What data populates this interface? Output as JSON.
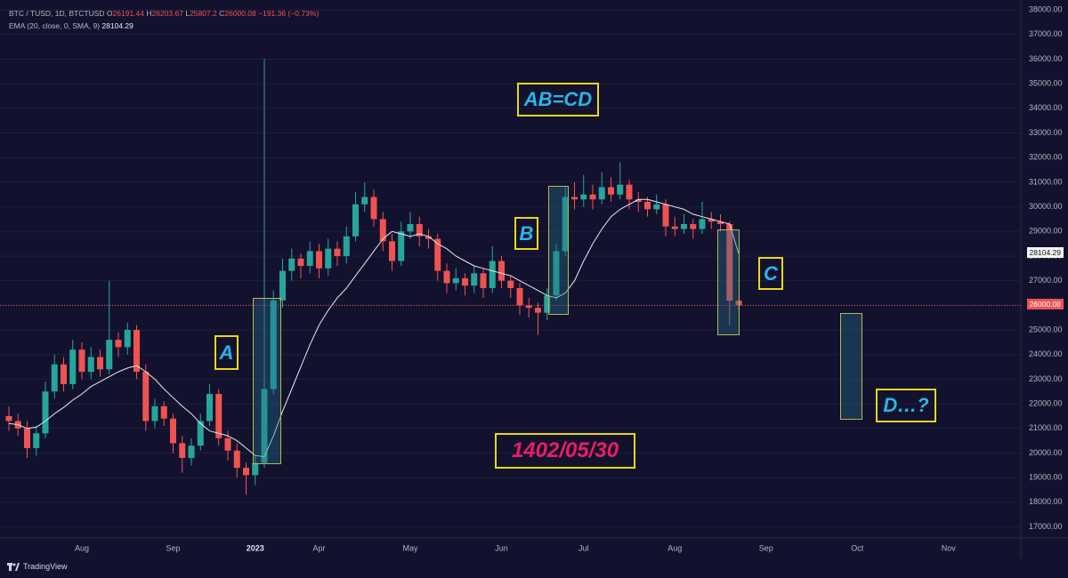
{
  "chart_data": {
    "type": "candlestick",
    "symbol": "BTC / TUSD, 1D, BTCTUSD",
    "ohlc_labels": [
      "O",
      "H",
      "L",
      "C"
    ],
    "change": "−191.36 (−0.73%)",
    "up_color": "#26a69a",
    "down_color": "#ef5350",
    "grid": true,
    "categories": [
      null,
      null,
      null,
      null,
      null,
      null,
      null,
      null,
      "Aug",
      null,
      null,
      null,
      null,
      null,
      null,
      null,
      null,
      null,
      "Sep",
      null,
      null,
      null,
      null,
      null,
      null,
      null,
      null,
      "2023",
      null,
      null,
      null,
      null,
      null,
      null,
      "Apr",
      null,
      null,
      null,
      null,
      null,
      null,
      null,
      null,
      null,
      "May",
      null,
      null,
      null,
      null,
      null,
      null,
      null,
      null,
      null,
      "Jun",
      null,
      null,
      null,
      null,
      null,
      null,
      null,
      null,
      "Jul",
      null,
      null,
      null,
      null,
      null,
      null,
      null,
      null,
      null,
      "Aug",
      null,
      null,
      null,
      null,
      null,
      null,
      null,
      null,
      null,
      "Sep",
      null,
      null,
      null,
      null,
      null,
      null,
      null,
      null,
      null,
      "Oct",
      null,
      null,
      null,
      null,
      null,
      null,
      null,
      null,
      null,
      "Nov",
      null,
      null,
      null,
      null,
      null,
      null
    ],
    "open": [
      21500,
      21300,
      21000,
      20200,
      20800,
      22500,
      23600,
      22800,
      24200,
      23300,
      23900,
      23400,
      24600,
      24300,
      25000,
      23300,
      21300,
      21900,
      21400,
      20400,
      19800,
      20300,
      21300,
      22400,
      20600,
      20100,
      19400,
      19100,
      19600,
      22600,
      26200,
      27400,
      27900,
      27600,
      28200,
      27500,
      28300,
      28000,
      28800,
      30100,
      30400,
      29500,
      28600,
      27800,
      29000,
      29300,
      28800,
      28700,
      27400,
      26900,
      27100,
      26800,
      27300,
      26700,
      27800,
      27000,
      26700,
      26000,
      25900,
      25700,
      26400,
      28200,
      30400,
      30300,
      30500,
      30300,
      30800,
      30500,
      30900,
      30300,
      30200,
      29900,
      30100,
      29200,
      29100,
      29300,
      29100,
      29500,
      29400,
      29300,
      26191.44,
      null,
      null,
      null,
      null,
      null,
      null,
      null,
      null,
      null,
      null,
      null,
      null,
      null,
      null,
      null,
      null,
      null,
      null,
      null,
      null,
      null,
      null,
      null,
      null,
      null,
      null,
      null,
      null,
      null
    ],
    "high": [
      21900,
      21600,
      21300,
      21100,
      22900,
      24000,
      23900,
      24600,
      24500,
      24300,
      24200,
      27000,
      24900,
      25300,
      25200,
      23600,
      22200,
      22100,
      21600,
      20700,
      20600,
      21600,
      22800,
      22600,
      20900,
      20400,
      19600,
      19900,
      36000,
      26600,
      27900,
      28300,
      28100,
      28600,
      28500,
      28700,
      28600,
      29200,
      30600,
      31000,
      30700,
      29800,
      28900,
      29400,
      29800,
      29600,
      29100,
      28900,
      27700,
      27500,
      27300,
      27600,
      27500,
      28400,
      28000,
      27200,
      26900,
      26300,
      26100,
      26700,
      28500,
      30800,
      31000,
      31300,
      30900,
      31400,
      31200,
      31800,
      31100,
      30600,
      30400,
      30500,
      30300,
      29600,
      29700,
      29500,
      30200,
      29800,
      29700,
      29400,
      26203.67,
      null,
      null,
      null,
      null,
      null,
      null,
      null,
      null,
      null,
      null,
      null,
      null,
      null,
      null,
      null,
      null,
      null,
      null,
      null,
      null,
      null,
      null,
      null,
      null,
      null,
      null,
      null,
      null,
      null
    ],
    "low": [
      20900,
      20700,
      19800,
      19900,
      20600,
      22200,
      22500,
      22600,
      23000,
      23000,
      23100,
      23200,
      23900,
      24000,
      23000,
      20900,
      21000,
      21100,
      20000,
      19200,
      19500,
      20100,
      21100,
      20300,
      19700,
      19000,
      18300,
      18700,
      19400,
      22400,
      25900,
      27000,
      27100,
      27300,
      27100,
      27200,
      27600,
      27700,
      28600,
      29800,
      29200,
      28200,
      27400,
      27600,
      28700,
      28400,
      28300,
      27000,
      26500,
      26600,
      26400,
      26500,
      26300,
      26500,
      26700,
      26300,
      25600,
      25500,
      24800,
      25400,
      26200,
      28000,
      29900,
      30000,
      29900,
      30100,
      30200,
      30300,
      29900,
      29800,
      29600,
      29700,
      28800,
      28800,
      28900,
      28700,
      28900,
      29100,
      29000,
      25200,
      25807.2,
      null,
      null,
      null,
      null,
      null,
      null,
      null,
      null,
      null,
      null,
      null,
      null,
      null,
      null,
      null,
      null,
      null,
      null,
      null,
      null,
      null,
      null,
      null,
      null,
      null,
      null,
      null,
      null,
      null
    ],
    "close": [
      21300,
      21000,
      20200,
      20800,
      22500,
      23600,
      22800,
      24200,
      23300,
      23900,
      23400,
      24600,
      24300,
      25000,
      23300,
      21300,
      21900,
      21400,
      20400,
      19800,
      20300,
      21300,
      22400,
      20600,
      20100,
      19400,
      19100,
      19600,
      22600,
      26200,
      27400,
      27900,
      27600,
      28200,
      27500,
      28300,
      28000,
      28800,
      30100,
      30400,
      29500,
      28600,
      27800,
      29000,
      29300,
      28800,
      28700,
      27400,
      26900,
      27100,
      26800,
      27300,
      26700,
      27800,
      27000,
      26700,
      26000,
      25900,
      25700,
      26400,
      28200,
      30400,
      30300,
      30500,
      30300,
      30800,
      30500,
      30900,
      30300,
      30200,
      29900,
      30100,
      29200,
      29100,
      29300,
      29100,
      29500,
      29400,
      29300,
      26191.44,
      26000.08,
      null,
      null,
      null,
      null,
      null,
      null,
      null,
      null,
      null,
      null,
      null,
      null,
      null,
      null,
      null,
      null,
      null,
      null,
      null,
      null,
      null,
      null,
      null,
      null,
      null,
      null,
      null,
      null,
      null
    ],
    "overlay": {
      "name": "EMA (20, close, 0, SMA, 9)",
      "color": "#e8e8f0",
      "values": [
        21200,
        21150,
        21000,
        21050,
        21300,
        21600,
        21850,
        22150,
        22400,
        22700,
        22900,
        23100,
        23300,
        23450,
        23550,
        23300,
        23000,
        22600,
        22250,
        21900,
        21600,
        21200,
        20900,
        20800,
        20700,
        20500,
        20200,
        19900,
        19850,
        20700,
        21700,
        22600,
        23500,
        24400,
        25200,
        25800,
        26300,
        26700,
        27200,
        27700,
        28200,
        28700,
        29000,
        28900,
        28800,
        28900,
        28800,
        28500,
        28300,
        28000,
        27800,
        27600,
        27500,
        27400,
        27300,
        27200,
        27000,
        26800,
        26600,
        26400,
        26300,
        26500,
        27000,
        27800,
        28500,
        29100,
        29600,
        29900,
        30100,
        30300,
        30300,
        30200,
        30100,
        30000,
        29900,
        29700,
        29600,
        29500,
        29400,
        29300,
        28104.29,
        null,
        null,
        null,
        null,
        null,
        null,
        null,
        null,
        null,
        null,
        null,
        null,
        null,
        null,
        null,
        null,
        null,
        null,
        null,
        null,
        null,
        null,
        null,
        null,
        null,
        null,
        null,
        null,
        null
      ]
    },
    "ylim": [
      16550,
      38400
    ],
    "yticks": [
      {
        "value": 17000,
        "label": "17000.00"
      },
      {
        "value": 18000,
        "label": "18000.00"
      },
      {
        "value": 19000,
        "label": "19000.00"
      },
      {
        "value": 20000,
        "label": "20000.00"
      },
      {
        "value": 21000,
        "label": "21000.00"
      },
      {
        "value": 22000,
        "label": "22000.00"
      },
      {
        "value": 23000,
        "label": "23000.00"
      },
      {
        "value": 24000,
        "label": "24000.00"
      },
      {
        "value": 25000,
        "label": "25000.00"
      },
      {
        "value": 26000,
        "label": "26000.00"
      },
      {
        "value": 27000,
        "label": "27000.00"
      },
      {
        "value": 28000,
        "label": "28000.00"
      },
      {
        "value": 29000,
        "label": "29000.00"
      },
      {
        "value": 30000,
        "label": "30000.00"
      },
      {
        "value": 31000,
        "label": "31000.00"
      },
      {
        "value": 32000,
        "label": "32000.00"
      },
      {
        "value": 33000,
        "label": "33000.00"
      },
      {
        "value": 34000,
        "label": "34000.00"
      },
      {
        "value": 35000,
        "label": "35000.00"
      },
      {
        "value": 36000,
        "label": "36000.00"
      },
      {
        "value": 37000,
        "label": "37000.00"
      },
      {
        "value": 38000,
        "label": "38000.00"
      }
    ],
    "annotations": [
      "AB=CD",
      "A",
      "B",
      "C",
      "D…?",
      "1402/05/30"
    ],
    "footer": "TradingView"
  }
}
